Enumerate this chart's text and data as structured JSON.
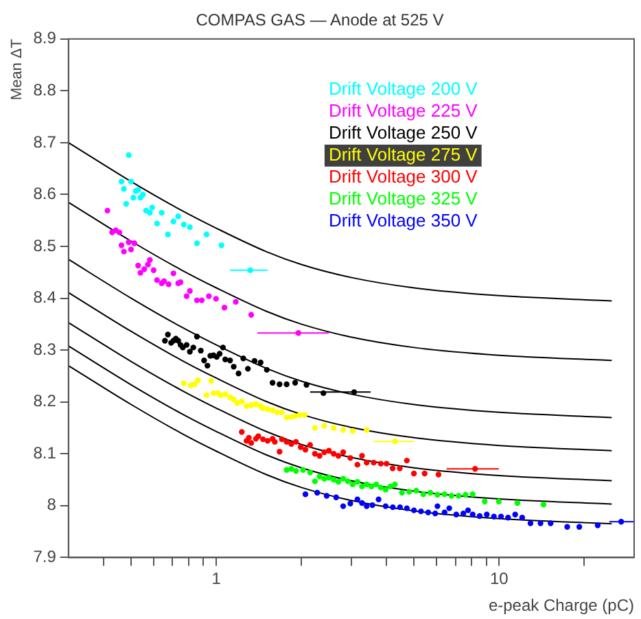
{
  "chart_data": {
    "type": "scatter",
    "title": "COMPAS GAS — Anode at 525 V",
    "xlabel": "e-peak Charge (pC)",
    "ylabel": "Mean ΔT",
    "log": "x",
    "grid": false,
    "legend": "top right",
    "marker": "circle",
    "line_style": "solid",
    "xlim": [
      0.3,
      30
    ],
    "xticks": [
      {
        "value": 0.4,
        "label": null
      },
      {
        "value": 0.5,
        "label": null
      },
      {
        "value": 0.6,
        "label": null
      },
      {
        "value": 0.7,
        "label": null
      },
      {
        "value": 0.8,
        "label": null
      },
      {
        "value": 0.9,
        "label": null
      },
      1,
      {
        "value": 2,
        "label": null
      },
      {
        "value": 3,
        "label": null
      },
      {
        "value": 4,
        "label": null
      },
      {
        "value": 5,
        "label": null
      },
      {
        "value": 6,
        "label": null
      },
      {
        "value": 7,
        "label": null
      },
      {
        "value": 8,
        "label": null
      },
      {
        "value": 9,
        "label": null
      },
      10,
      {
        "value": 20,
        "label": null
      }
    ],
    "ylim": [
      7.9,
      8.9
    ],
    "yticks": [
      7.9,
      8,
      8.1,
      8.2,
      8.3,
      8.4,
      8.5,
      8.6,
      8.7,
      8.8,
      8.9
    ],
    "series": [
      {
        "name": "Drift Voltage 200 V",
        "color": "#00ffff",
        "x": [
          0.462,
          0.471,
          0.49,
          0.48,
          0.499,
          0.509,
          0.519,
          0.529,
          0.539,
          0.55,
          0.564,
          0.582,
          0.593,
          0.617,
          0.641,
          0.674,
          0.705,
          0.733,
          0.767,
          0.806,
          0.854,
          0.923,
          1.043,
          1.318
        ],
        "values": [
          8.625,
          8.611,
          8.676,
          8.582,
          8.625,
          8.594,
          8.607,
          8.609,
          8.594,
          8.6,
          8.569,
          8.565,
          8.575,
          8.544,
          8.565,
          8.523,
          8.548,
          8.558,
          8.542,
          8.537,
          8.506,
          8.523,
          8.502,
          8.454
        ],
        "xerrors": [
          null,
          null,
          null,
          null,
          null,
          null,
          null,
          null,
          null,
          null,
          null,
          null,
          null,
          null,
          null,
          null,
          null,
          null,
          null,
          null,
          null,
          null,
          null,
          [
            1.118,
            1.518
          ]
        ]
      },
      {
        "name": "Drift Voltage 225 V",
        "color": "#ff00ff",
        "x": [
          0.412,
          0.428,
          0.441,
          0.454,
          0.462,
          0.471,
          0.49,
          0.499,
          0.513,
          0.529,
          0.539,
          0.556,
          0.573,
          0.582,
          0.6,
          0.617,
          0.641,
          0.653,
          0.678,
          0.705,
          0.733,
          0.747,
          0.785,
          0.806,
          0.854,
          0.888,
          0.941,
          0.997,
          1.068,
          1.171,
          1.328,
          1.95
        ],
        "values": [
          8.569,
          8.527,
          8.531,
          8.527,
          8.502,
          8.49,
          8.508,
          8.494,
          8.506,
          8.463,
          8.449,
          8.456,
          8.465,
          8.474,
          8.454,
          8.435,
          8.429,
          8.433,
          8.427,
          8.448,
          8.429,
          8.431,
          8.404,
          8.414,
          8.396,
          8.396,
          8.404,
          8.399,
          8.382,
          8.393,
          8.368,
          8.333
        ],
        "xerrors": [
          null,
          null,
          null,
          null,
          null,
          null,
          null,
          null,
          null,
          null,
          null,
          null,
          null,
          null,
          null,
          null,
          null,
          null,
          null,
          null,
          null,
          null,
          null,
          null,
          null,
          null,
          null,
          null,
          null,
          null,
          null,
          [
            1.396,
            2.5
          ]
        ]
      },
      {
        "name": "Drift Voltage 250 V",
        "color": "#000000",
        "x": [
          0.658,
          0.674,
          0.692,
          0.705,
          0.719,
          0.733,
          0.747,
          0.761,
          0.785,
          0.806,
          0.829,
          0.854,
          0.881,
          0.905,
          0.93,
          0.952,
          0.977,
          1.003,
          1.027,
          1.055,
          1.075,
          1.118,
          1.152,
          1.198,
          1.245,
          1.293,
          1.365,
          1.434,
          1.508,
          1.58,
          1.673,
          1.772,
          1.899,
          2.083,
          2.391,
          3.07
        ],
        "values": [
          8.318,
          8.33,
          8.314,
          8.318,
          8.322,
          8.318,
          8.31,
          8.305,
          8.31,
          8.297,
          8.305,
          8.326,
          8.299,
          8.28,
          8.27,
          8.289,
          8.29,
          8.287,
          8.293,
          8.305,
          8.282,
          8.28,
          8.268,
          8.255,
          8.284,
          8.264,
          8.279,
          8.276,
          8.262,
          8.237,
          8.234,
          8.234,
          8.237,
          8.233,
          8.217,
          8.219
        ],
        "xerrors": [
          null,
          null,
          null,
          null,
          null,
          null,
          null,
          null,
          null,
          null,
          null,
          null,
          null,
          null,
          null,
          null,
          null,
          null,
          null,
          null,
          null,
          null,
          null,
          null,
          null,
          null,
          null,
          null,
          null,
          null,
          null,
          null,
          null,
          null,
          null,
          [
            2.145,
            3.51
          ]
        ]
      },
      {
        "name": "Drift Voltage 275 V",
        "color": "#ffff00",
        "x": [
          0.767,
          0.811,
          0.838,
          0.861,
          0.923,
          0.958,
          0.977,
          1.015,
          1.035,
          1.075,
          1.118,
          1.152,
          1.184,
          1.23,
          1.278,
          1.328,
          1.38,
          1.434,
          1.462,
          1.518,
          1.58,
          1.641,
          1.705,
          1.772,
          1.841,
          1.899,
          1.972,
          2.05,
          2.231,
          2.408,
          2.6,
          2.808,
          3.033,
          3.4,
          4.28
        ],
        "values": [
          8.236,
          8.232,
          8.234,
          8.242,
          8.213,
          8.241,
          8.217,
          8.217,
          8.213,
          8.215,
          8.209,
          8.205,
          8.198,
          8.201,
          8.192,
          8.194,
          8.196,
          8.192,
          8.188,
          8.186,
          8.184,
          8.18,
          8.18,
          8.17,
          8.171,
          8.173,
          8.175,
          8.175,
          8.15,
          8.154,
          8.15,
          8.146,
          8.144,
          8.146,
          8.124
        ],
        "xerrors": [
          null,
          null,
          null,
          null,
          null,
          null,
          null,
          null,
          null,
          null,
          null,
          null,
          null,
          null,
          null,
          null,
          null,
          null,
          null,
          null,
          null,
          null,
          null,
          null,
          null,
          null,
          null,
          null,
          null,
          null,
          null,
          null,
          null,
          null,
          [
            3.6,
            4.995
          ]
        ]
      },
      {
        "name": "Drift Voltage 300 V",
        "color": "#ff0000",
        "x": [
          1.23,
          1.278,
          1.303,
          1.328,
          1.38,
          1.407,
          1.462,
          1.518,
          1.58,
          1.609,
          1.673,
          1.705,
          1.772,
          1.841,
          1.912,
          1.987,
          2.065,
          2.145,
          2.231,
          2.317,
          2.408,
          2.5,
          2.6,
          2.701,
          2.808,
          2.976,
          3.153,
          3.273,
          3.4,
          3.6,
          3.815,
          3.996,
          4.2,
          4.45,
          4.716,
          4.995,
          5.45,
          6.1,
          8.22
        ],
        "values": [
          8.142,
          8.125,
          8.131,
          8.121,
          8.129,
          8.134,
          8.128,
          8.125,
          8.129,
          8.123,
          8.104,
          8.128,
          8.123,
          8.119,
          8.123,
          8.113,
          8.108,
          8.117,
          8.1,
          8.096,
          8.103,
          8.106,
          8.1,
          8.096,
          8.103,
          8.092,
          8.079,
          8.096,
          8.083,
          8.083,
          8.081,
          8.081,
          8.072,
          8.072,
          8.087,
          8.062,
          8.062,
          8.06,
          8.071
        ],
        "xerrors": [
          null,
          null,
          null,
          null,
          null,
          null,
          null,
          null,
          null,
          null,
          null,
          null,
          null,
          null,
          null,
          null,
          null,
          null,
          null,
          null,
          null,
          null,
          null,
          null,
          null,
          null,
          null,
          null,
          null,
          null,
          null,
          null,
          null,
          null,
          null,
          null,
          null,
          null,
          [
            6.52,
            9.97
          ]
        ]
      },
      {
        "name": "Drift Voltage 325 V",
        "color": "#00ff00",
        "x": [
          1.772,
          1.841,
          1.912,
          2.025,
          2.145,
          2.231,
          2.317,
          2.408,
          2.5,
          2.6,
          2.701,
          2.808,
          2.917,
          3.033,
          3.153,
          3.273,
          3.4,
          3.536,
          3.673,
          3.815,
          3.967,
          4.121,
          4.28,
          4.532,
          4.807,
          5.092,
          5.392,
          5.709,
          6.048,
          6.405,
          6.784,
          7.185,
          7.609,
          8.058,
          8.89,
          9.97,
          11.6,
          14.35
        ],
        "values": [
          8.069,
          8.071,
          8.067,
          8.069,
          8.064,
          8.047,
          8.056,
          8.052,
          8.054,
          8.05,
          8.046,
          8.052,
          8.047,
          8.041,
          8.046,
          8.037,
          8.041,
          8.037,
          8.041,
          8.035,
          8.031,
          8.037,
          8.041,
          8.025,
          8.027,
          8.029,
          8.022,
          8.025,
          8.021,
          8.022,
          8.019,
          8.019,
          8.021,
          8.022,
          8.008,
          8.008,
          8.005,
          8.002
        ]
      },
      {
        "name": "Drift Voltage 350 V",
        "color": "#0000ff",
        "x": [
          2.065,
          2.273,
          2.455,
          2.652,
          2.808,
          2.976,
          3.153,
          3.273,
          3.4,
          3.562,
          3.746,
          3.967,
          4.206,
          4.46,
          4.716,
          4.995,
          5.29,
          5.61,
          5.94,
          6.05,
          6.41,
          6.66,
          7.05,
          7.47,
          7.76,
          8.06,
          8.53,
          9.04,
          9.58,
          10.15,
          10.75,
          11.39,
          12.06,
          12.9,
          14.0,
          15.2,
          17.4,
          19.2,
          22.3,
          27.0
        ],
        "values": [
          8.022,
          8.025,
          8.019,
          8.016,
          7.999,
          8.004,
          8.012,
          8.005,
          7.999,
          8.001,
          8.012,
          7.999,
          7.997,
          7.997,
          7.995,
          7.991,
          7.989,
          7.987,
          7.985,
          7.999,
          7.987,
          7.995,
          7.983,
          7.985,
          7.991,
          7.983,
          7.98,
          7.983,
          7.979,
          7.979,
          7.977,
          7.983,
          7.977,
          7.966,
          7.966,
          7.966,
          7.959,
          7.959,
          7.962,
          7.969
        ],
        "xerrors": [
          null,
          null,
          null,
          null,
          null,
          null,
          null,
          null,
          null,
          null,
          null,
          null,
          null,
          null,
          null,
          null,
          null,
          null,
          null,
          null,
          null,
          null,
          null,
          null,
          null,
          null,
          null,
          null,
          null,
          null,
          null,
          null,
          null,
          null,
          null,
          null,
          null,
          null,
          null,
          [
            24.5,
            30
          ]
        ]
      },
      {
        "type": "line",
        "marker": "none",
        "color": "#000000",
        "x": [
          0.3,
          0.5,
          0.75,
          1,
          1.5,
          2,
          3,
          5,
          10,
          25
        ],
        "values": [
          8.7,
          8.625,
          8.57,
          8.535,
          8.49,
          8.465,
          8.44,
          8.42,
          8.405,
          8.395
        ]
      },
      {
        "type": "line",
        "marker": "none",
        "color": "#000000",
        "x": [
          0.3,
          0.5,
          0.75,
          1,
          1.5,
          2,
          3,
          5,
          10,
          25
        ],
        "values": [
          8.585,
          8.51,
          8.455,
          8.42,
          8.375,
          8.35,
          8.325,
          8.305,
          8.29,
          8.28
        ]
      },
      {
        "type": "line",
        "marker": "none",
        "color": "#000000",
        "x": [
          0.3,
          0.5,
          0.75,
          1,
          1.5,
          2,
          3,
          5,
          10,
          25
        ],
        "values": [
          8.475,
          8.4,
          8.345,
          8.31,
          8.265,
          8.24,
          8.215,
          8.195,
          8.18,
          8.17
        ]
      },
      {
        "type": "line",
        "marker": "none",
        "color": "#000000",
        "x": [
          0.3,
          0.5,
          0.75,
          1,
          1.5,
          2,
          3,
          5,
          10,
          25
        ],
        "values": [
          8.411,
          8.336,
          8.281,
          8.246,
          8.201,
          8.176,
          8.151,
          8.131,
          8.116,
          8.106
        ]
      },
      {
        "type": "line",
        "marker": "none",
        "color": "#000000",
        "x": [
          0.3,
          0.5,
          0.75,
          1,
          1.5,
          2,
          3,
          5,
          10,
          25
        ],
        "values": [
          8.353,
          8.278,
          8.223,
          8.188,
          8.143,
          8.118,
          8.093,
          8.073,
          8.058,
          8.048
        ]
      },
      {
        "type": "line",
        "marker": "none",
        "color": "#000000",
        "x": [
          0.3,
          0.5,
          0.75,
          1,
          1.5,
          2,
          3,
          5,
          10,
          25
        ],
        "values": [
          8.308,
          8.233,
          8.178,
          8.143,
          8.098,
          8.073,
          8.048,
          8.028,
          8.013,
          8.003
        ]
      },
      {
        "type": "line",
        "marker": "none",
        "color": "#000000",
        "x": [
          0.3,
          0.5,
          0.75,
          1,
          1.5,
          2,
          3,
          5,
          10,
          25
        ],
        "values": [
          8.27,
          8.195,
          8.14,
          8.105,
          8.06,
          8.035,
          8.01,
          7.99,
          7.975,
          7.965
        ]
      }
    ]
  }
}
